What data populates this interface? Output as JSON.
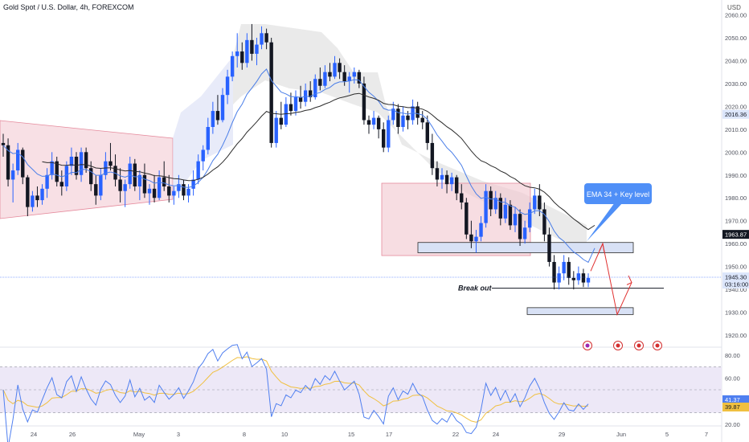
{
  "title": "Gold Spot / U.S. Dollar, 4h, FOREXCOM",
  "currency_label": "USD",
  "colors": {
    "up": "#2962ff",
    "down": "#131722",
    "ema": "#4a7ee8",
    "ma": "#2b2b2b",
    "zone_pink": "#f2c6cf",
    "zone_pink_border": "#e58a9c",
    "zone_blue": "#d8e1f5",
    "zone_blue_border": "#2b2b2b",
    "cloud": "#d9d9d9",
    "arrow": "#e0302f",
    "callout": "#4f8ff7",
    "rsi_line": "#4f7ff0",
    "rsi_ma": "#f0c040",
    "rsi_band": "#ede8f7"
  },
  "chart_data": {
    "type": "candlestick",
    "y_axis": {
      "min": 1915,
      "max": 2062,
      "ticks": [
        "2060.00",
        "2050.00",
        "2040.00",
        "2030.00",
        "2020.00",
        "2010.00",
        "2000.00",
        "1990.00",
        "1980.00",
        "1970.00",
        "1960.00",
        "1950.00",
        "1940.00",
        "1930.00",
        "1920.00"
      ]
    },
    "x_axis": {
      "ticks": [
        "24",
        "26",
        "May",
        "3",
        "8",
        "10",
        "15",
        "17",
        "22",
        "24",
        "29",
        "Jun",
        "5",
        "7"
      ]
    },
    "price_labels": {
      "ema_value": "2016.36",
      "key_level": "1963.87",
      "last_price": "1945.30",
      "countdown": "03:16:00"
    },
    "annotations": {
      "callout": "EMA 34 + Key level",
      "break_out": "Break out"
    },
    "rsi": {
      "ticks": [
        "80.00",
        "60.00",
        "40.00",
        "20.00"
      ],
      "value": "41.37",
      "ma_value": "39.87",
      "upper_band": 70,
      "lower_band": 30
    },
    "ohlc": [
      [
        2004,
        2008,
        1998,
        2003
      ],
      [
        2003,
        2006,
        1985,
        1988
      ],
      [
        1988,
        1995,
        1978,
        1992
      ],
      [
        1992,
        2004,
        1990,
        2001
      ],
      [
        2001,
        2002,
        1986,
        1989
      ],
      [
        1989,
        1990,
        1972,
        1976
      ],
      [
        1976,
        1983,
        1974,
        1981
      ],
      [
        1981,
        1985,
        1976,
        1979
      ],
      [
        1979,
        1986,
        1977,
        1984
      ],
      [
        1984,
        1993,
        1980,
        1990
      ],
      [
        1990,
        2000,
        1988,
        1996
      ],
      [
        1996,
        1998,
        1985,
        1987
      ],
      [
        1987,
        1992,
        1981,
        1985
      ],
      [
        1985,
        1996,
        1983,
        1994
      ],
      [
        1994,
        2002,
        1990,
        1998
      ],
      [
        1998,
        2000,
        1988,
        1990
      ],
      [
        1990,
        2002,
        1987,
        2000
      ],
      [
        2000,
        2002,
        1991,
        1993
      ],
      [
        1993,
        1996,
        1983,
        1986
      ],
      [
        1986,
        1990,
        1977,
        1981
      ],
      [
        1981,
        1993,
        1979,
        1990
      ],
      [
        1990,
        2000,
        1988,
        1996
      ],
      [
        1996,
        2004,
        1992,
        1994
      ],
      [
        1994,
        1999,
        1985,
        1988
      ],
      [
        1988,
        1993,
        1978,
        1983
      ],
      [
        1983,
        1988,
        1976,
        1986
      ],
      [
        1986,
        1998,
        1984,
        1995
      ],
      [
        1995,
        1997,
        1983,
        1985
      ],
      [
        1985,
        1992,
        1979,
        1990
      ],
      [
        1990,
        1995,
        1980,
        1982
      ],
      [
        1982,
        1986,
        1977,
        1984
      ],
      [
        1984,
        1990,
        1978,
        1980
      ],
      [
        1980,
        1992,
        1979,
        1989
      ],
      [
        1989,
        1996,
        1983,
        1985
      ],
      [
        1985,
        1990,
        1978,
        1981
      ],
      [
        1981,
        1985,
        1977,
        1983
      ],
      [
        1983,
        1990,
        1980,
        1986
      ],
      [
        1986,
        1988,
        1979,
        1981
      ],
      [
        1981,
        1986,
        1978,
        1984
      ],
      [
        1984,
        1992,
        1981,
        1988
      ],
      [
        1988,
        1999,
        1986,
        1996
      ],
      [
        1996,
        2003,
        1992,
        2001
      ],
      [
        2001,
        2015,
        1999,
        2011
      ],
      [
        2011,
        2022,
        2008,
        2018
      ],
      [
        2018,
        2025,
        2012,
        2014
      ],
      [
        2014,
        2028,
        2013,
        2025
      ],
      [
        2025,
        2036,
        2021,
        2033
      ],
      [
        2033,
        2044,
        2031,
        2042
      ],
      [
        2042,
        2052,
        2037,
        2044
      ],
      [
        2044,
        2048,
        2036,
        2039
      ],
      [
        2039,
        2052,
        2037,
        2049
      ],
      [
        2049,
        2056,
        2040,
        2043
      ],
      [
        2043,
        2050,
        2038,
        2047
      ],
      [
        2047,
        2055,
        2045,
        2052
      ],
      [
        2052,
        2054,
        2045,
        2048
      ],
      [
        2048,
        2050,
        2002,
        2004
      ],
      [
        2004,
        2018,
        2002,
        2015
      ],
      [
        2015,
        2022,
        2010,
        2012
      ],
      [
        2012,
        2024,
        2011,
        2021
      ],
      [
        2021,
        2026,
        2016,
        2018
      ],
      [
        2018,
        2027,
        2016,
        2024
      ],
      [
        2024,
        2029,
        2019,
        2022
      ],
      [
        2022,
        2030,
        2020,
        2027
      ],
      [
        2027,
        2031,
        2022,
        2024
      ],
      [
        2024,
        2034,
        2023,
        2032
      ],
      [
        2032,
        2037,
        2027,
        2029
      ],
      [
        2029,
        2038,
        2028,
        2035
      ],
      [
        2035,
        2039,
        2031,
        2033
      ],
      [
        2033,
        2042,
        2032,
        2039
      ],
      [
        2039,
        2041,
        2032,
        2035
      ],
      [
        2035,
        2038,
        2029,
        2031
      ],
      [
        2031,
        2035,
        2026,
        2033
      ],
      [
        2033,
        2037,
        2030,
        2035
      ],
      [
        2035,
        2036,
        2028,
        2030
      ],
      [
        2030,
        2033,
        2012,
        2014
      ],
      [
        2014,
        2016,
        2008,
        2012
      ],
      [
        2012,
        2018,
        2010,
        2015
      ],
      [
        2015,
        2016,
        2006,
        2010
      ],
      [
        2010,
        2013,
        2000,
        2002
      ],
      [
        2002,
        2016,
        2000,
        2014
      ],
      [
        2014,
        2022,
        2012,
        2019
      ],
      [
        2019,
        2021,
        2008,
        2011
      ],
      [
        2011,
        2020,
        2009,
        2016
      ],
      [
        2016,
        2018,
        2010,
        2014
      ],
      [
        2014,
        2023,
        2012,
        2020
      ],
      [
        2020,
        2022,
        2012,
        2015
      ],
      [
        2015,
        2018,
        2010,
        2013
      ],
      [
        2013,
        2016,
        2001,
        2004
      ],
      [
        2004,
        2008,
        1990,
        1993
      ],
      [
        1993,
        1996,
        1985,
        1988
      ],
      [
        1988,
        1993,
        1984,
        1990
      ],
      [
        1990,
        1992,
        1982,
        1986
      ],
      [
        1986,
        1991,
        1983,
        1989
      ],
      [
        1989,
        1990,
        1979,
        1982
      ],
      [
        1982,
        1986,
        1975,
        1978
      ],
      [
        1978,
        1980,
        1962,
        1964
      ],
      [
        1964,
        1970,
        1958,
        1961
      ],
      [
        1961,
        1966,
        1956,
        1963
      ],
      [
        1963,
        1972,
        1961,
        1969
      ],
      [
        1969,
        1986,
        1967,
        1983
      ],
      [
        1983,
        1985,
        1972,
        1975
      ],
      [
        1975,
        1983,
        1973,
        1980
      ],
      [
        1980,
        1982,
        1968,
        1971
      ],
      [
        1971,
        1980,
        1969,
        1977
      ],
      [
        1977,
        1979,
        1966,
        1968
      ],
      [
        1968,
        1976,
        1965,
        1973
      ],
      [
        1973,
        1975,
        1959,
        1962
      ],
      [
        1962,
        1970,
        1960,
        1967
      ],
      [
        1967,
        1978,
        1965,
        1975
      ],
      [
        1975,
        1984,
        1973,
        1981
      ],
      [
        1981,
        1986,
        1972,
        1975
      ],
      [
        1975,
        1978,
        1961,
        1964
      ],
      [
        1964,
        1967,
        1950,
        1952
      ],
      [
        1952,
        1955,
        1940,
        1943
      ],
      [
        1943,
        1950,
        1940,
        1947
      ],
      [
        1947,
        1955,
        1944,
        1952
      ],
      [
        1952,
        1954,
        1942,
        1945
      ],
      [
        1945,
        1948,
        1940,
        1944
      ],
      [
        1944,
        1950,
        1942,
        1947
      ],
      [
        1947,
        1949,
        1941,
        1943
      ],
      [
        1943,
        1947,
        1941,
        1945
      ]
    ]
  }
}
